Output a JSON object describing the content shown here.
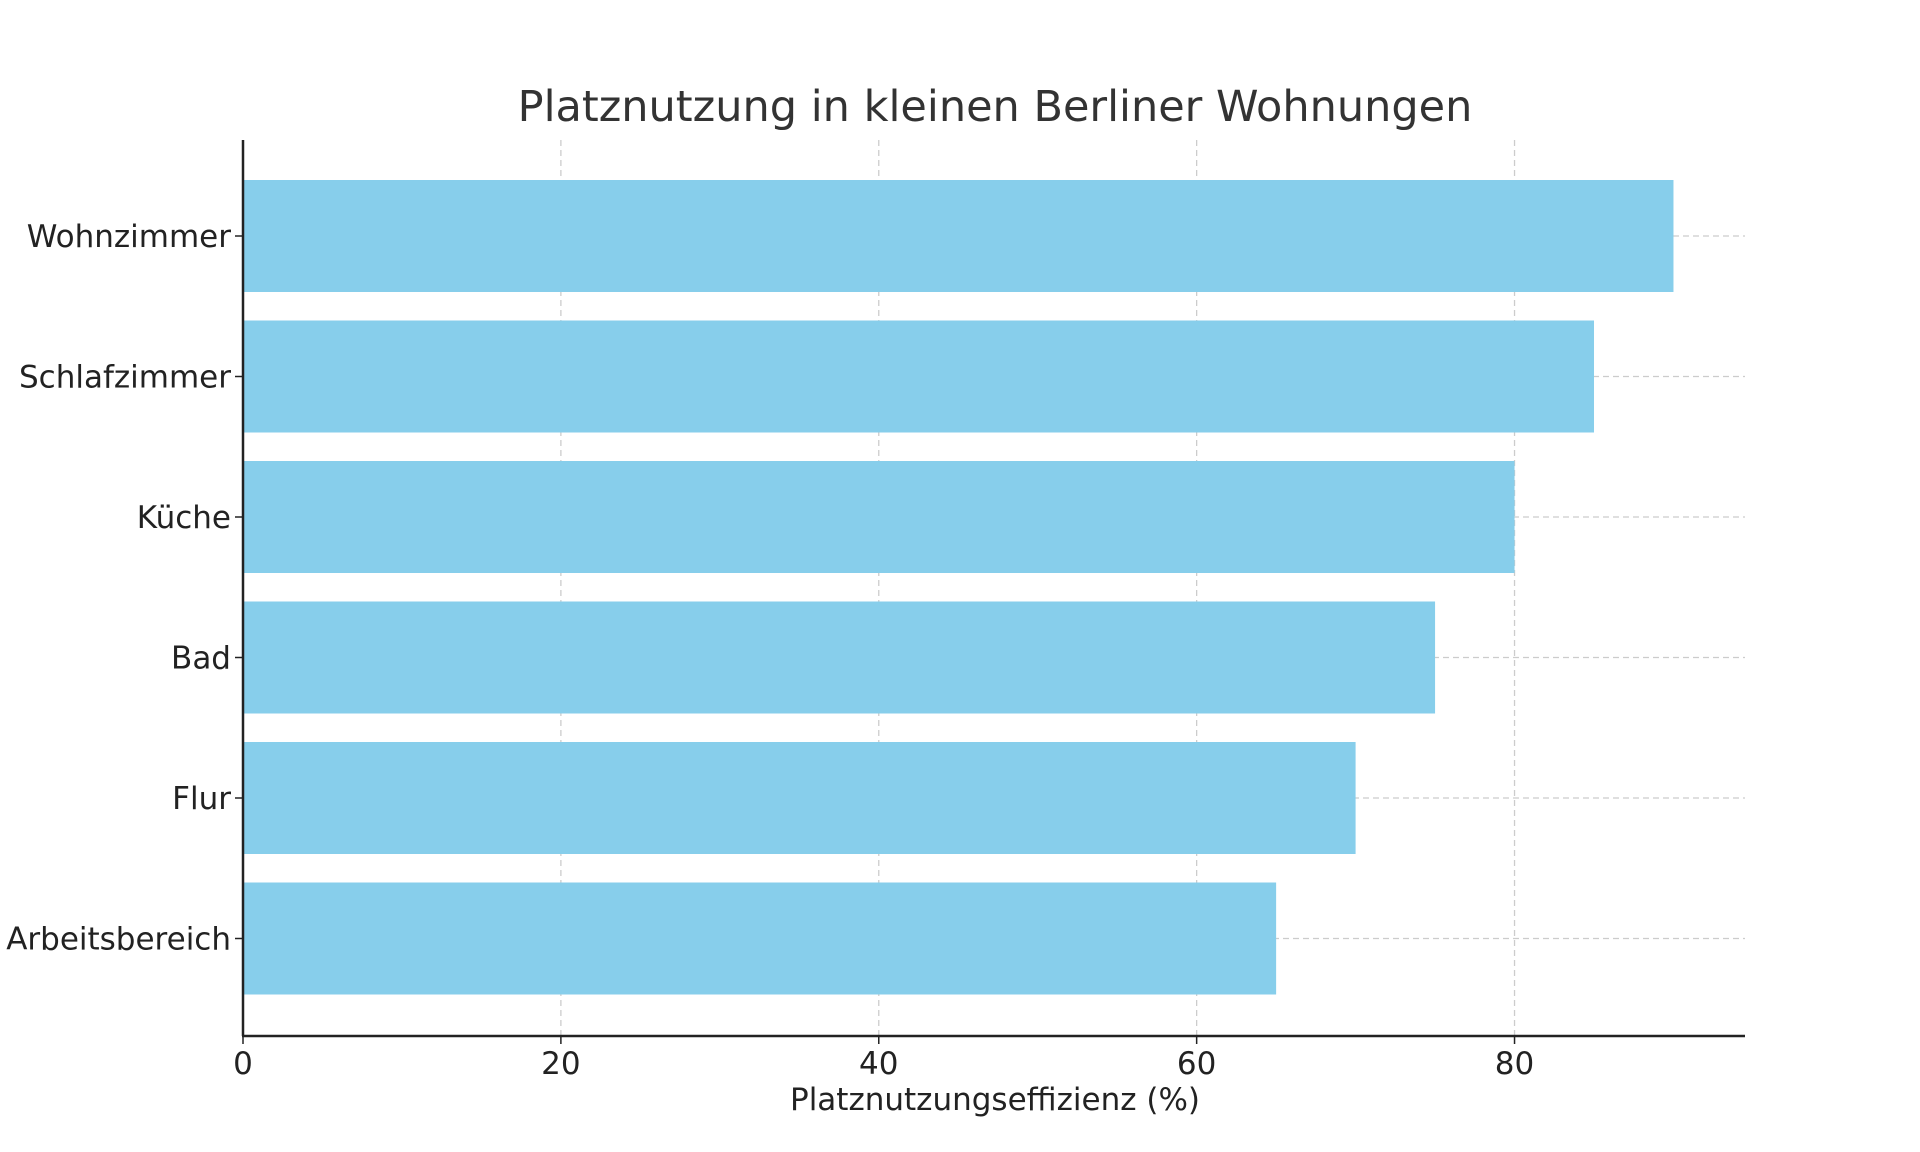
{
  "chart_data": {
    "type": "bar",
    "orientation": "horizontal",
    "title": "Platznutzung in kleinen Berliner Wohnungen",
    "xlabel": "Platznutzungseffizienz (%)",
    "ylabel": "",
    "categories": [
      "Wohnzimmer",
      "Schlafzimmer",
      "Küche",
      "Bad",
      "Flur",
      "Arbeitsbereich"
    ],
    "values": [
      90,
      85,
      80,
      75,
      70,
      65
    ],
    "xlim": [
      0,
      94.5
    ],
    "xticks": [
      0,
      20,
      40,
      60,
      80
    ],
    "grid": true,
    "bar_color": "#87CEEB",
    "grid_color": "#cccccc",
    "axis_color": "#222222"
  }
}
